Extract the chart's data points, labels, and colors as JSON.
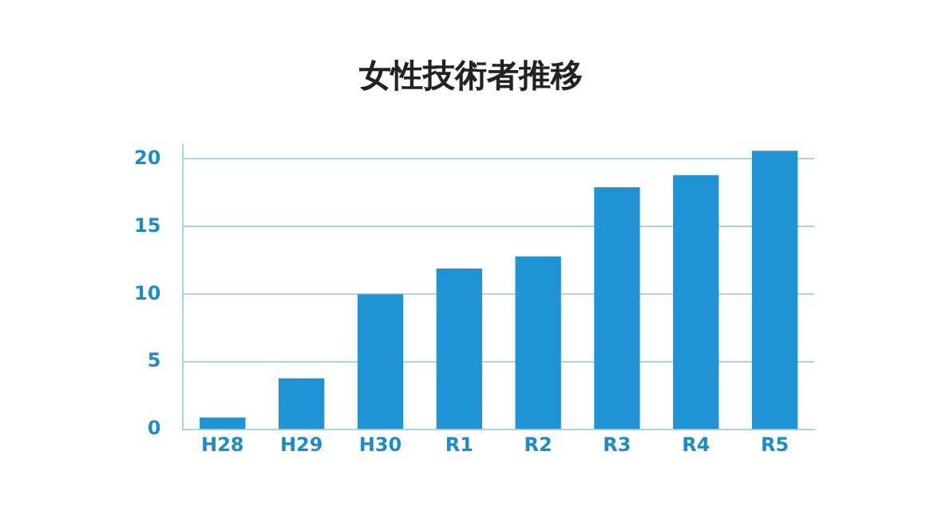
{
  "chart_data": {
    "type": "bar",
    "title": "女性技術者推移",
    "categories": [
      "H28",
      "H29",
      "H30",
      "R1",
      "R2",
      "R3",
      "R4",
      "R5"
    ],
    "values": [
      0.9,
      3.8,
      10,
      11.9,
      12.8,
      17.9,
      18.8,
      20.6
    ],
    "color": "#1f93d3",
    "ylim": [
      0,
      21
    ],
    "yticks": [
      0,
      5,
      10,
      15,
      20
    ],
    "grid": "y",
    "legend": false
  }
}
